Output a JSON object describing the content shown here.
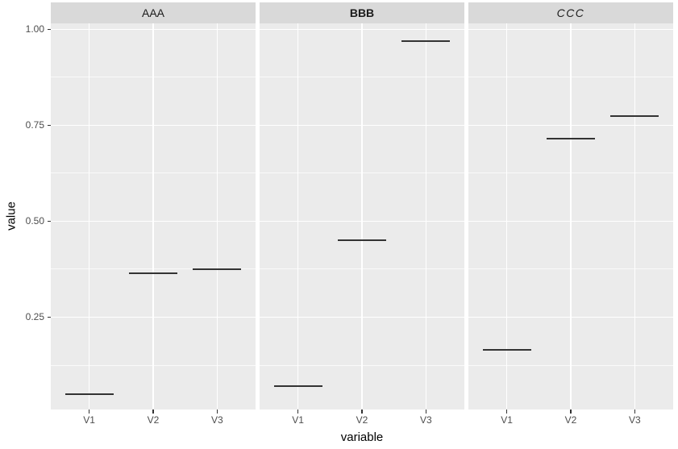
{
  "chart_data": {
    "type": "line",
    "subtype": "ggplot2 faceted summary plot: one horizontal segment (mean line) per category per facet",
    "categories": [
      "V1",
      "V2",
      "V3"
    ],
    "facets": [
      {
        "label": "AAA",
        "label_style": "plain",
        "values": [
          0.05,
          0.365,
          0.375
        ]
      },
      {
        "label": "BBB",
        "label_style": "bold",
        "values": [
          0.07,
          0.45,
          0.97
        ]
      },
      {
        "label": "CCC",
        "label_style": "italic",
        "values": [
          0.165,
          0.715,
          0.775
        ]
      }
    ],
    "title": "",
    "xlabel": "variable",
    "ylabel": "value",
    "y_ticks": [
      0.25,
      0.5,
      0.75,
      1.0
    ],
    "y_tick_labels": [
      "0.25",
      "0.50",
      "0.75",
      "1.00"
    ],
    "y_minor_ticks": [
      0.125,
      0.375,
      0.625,
      0.875
    ],
    "ylim": [
      0.0095,
      1.0155
    ],
    "grid": true,
    "legend": false
  },
  "colors": {
    "background": "#FFFFFF",
    "panel_background": "#EBEBEB",
    "strip_background": "#D9D9D9",
    "gridline": "#FFFFFF",
    "segment": "#333333",
    "axis_text": "#4D4D4D",
    "axis_title": "#000000",
    "strip_text": "#1A1A1A"
  }
}
